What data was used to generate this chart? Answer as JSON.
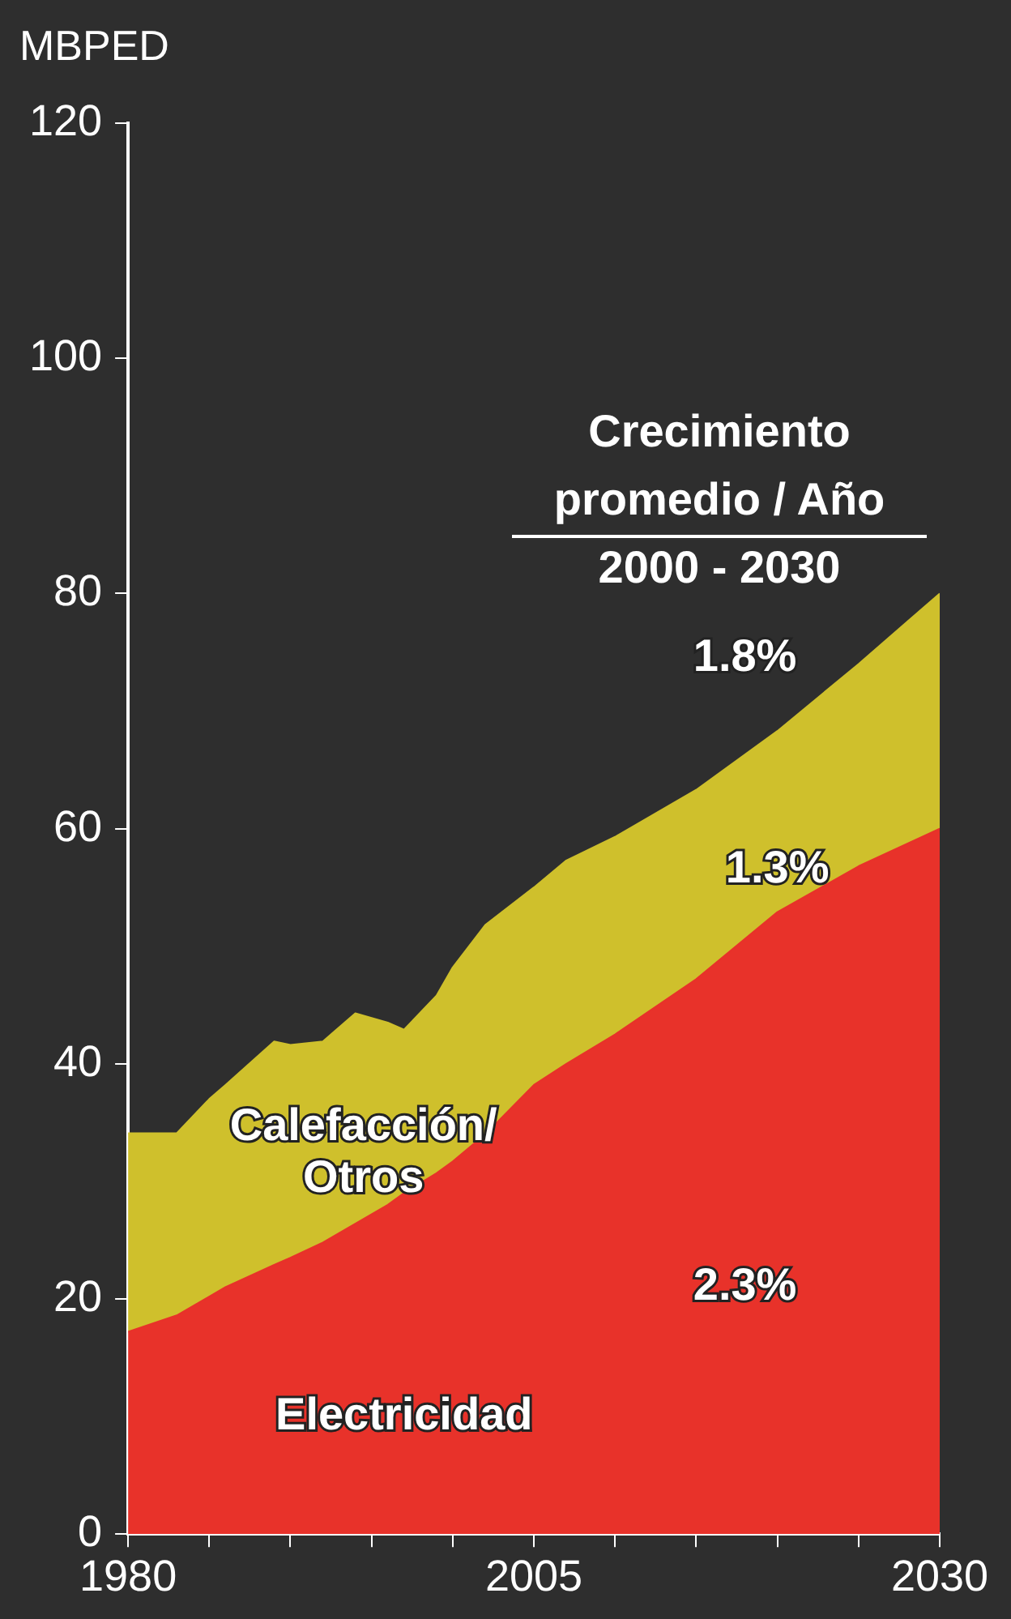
{
  "chart_data": {
    "type": "area",
    "stacked": true,
    "ylabel": "MBPED",
    "x": [
      1980,
      1983,
      1985,
      1986,
      1989,
      1990,
      1992,
      1994,
      1996,
      1997,
      1999,
      2000,
      2002,
      2005,
      2007,
      2010,
      2015,
      2020,
      2025,
      2030
    ],
    "series": [
      {
        "name": "Electricidad",
        "color": "#e8322a",
        "values": [
          17.2,
          18.6,
          20.2,
          21,
          22.9,
          23.5,
          24.8,
          26.4,
          28,
          29,
          30.7,
          31.7,
          34,
          38.2,
          40,
          42.5,
          47.2,
          52.9,
          56.8,
          60
        ]
      },
      {
        "name": "Calefacción/ Otros",
        "color": "#cfc02c",
        "values": [
          16.9,
          15.5,
          16.8,
          17.2,
          19,
          18.1,
          17.1,
          17.9,
          15.5,
          13.9,
          15.1,
          16.5,
          17.8,
          16.8,
          17.3,
          16.8,
          16.1,
          15.4,
          17.2,
          20
        ]
      }
    ],
    "xlim": [
      1980,
      2030
    ],
    "xticks": [
      1980,
      {
        "value": 1985,
        "label": null
      },
      {
        "value": 1990,
        "label": null
      },
      {
        "value": 1995,
        "label": null
      },
      {
        "value": 2000,
        "label": null
      },
      2005,
      {
        "value": 2010,
        "label": null
      },
      {
        "value": 2015,
        "label": null
      },
      {
        "value": 2020,
        "label": null
      },
      {
        "value": 2025,
        "label": null
      },
      2030
    ],
    "ylim": [
      0,
      120
    ],
    "yticks": [
      0,
      20,
      40,
      60,
      80,
      100,
      120
    ],
    "grid": false,
    "legend": false,
    "annotations": [
      "Crecimiento promedio / Año 2000 - 2030",
      "1.8%",
      "1.3%",
      "2.3%"
    ]
  }
}
